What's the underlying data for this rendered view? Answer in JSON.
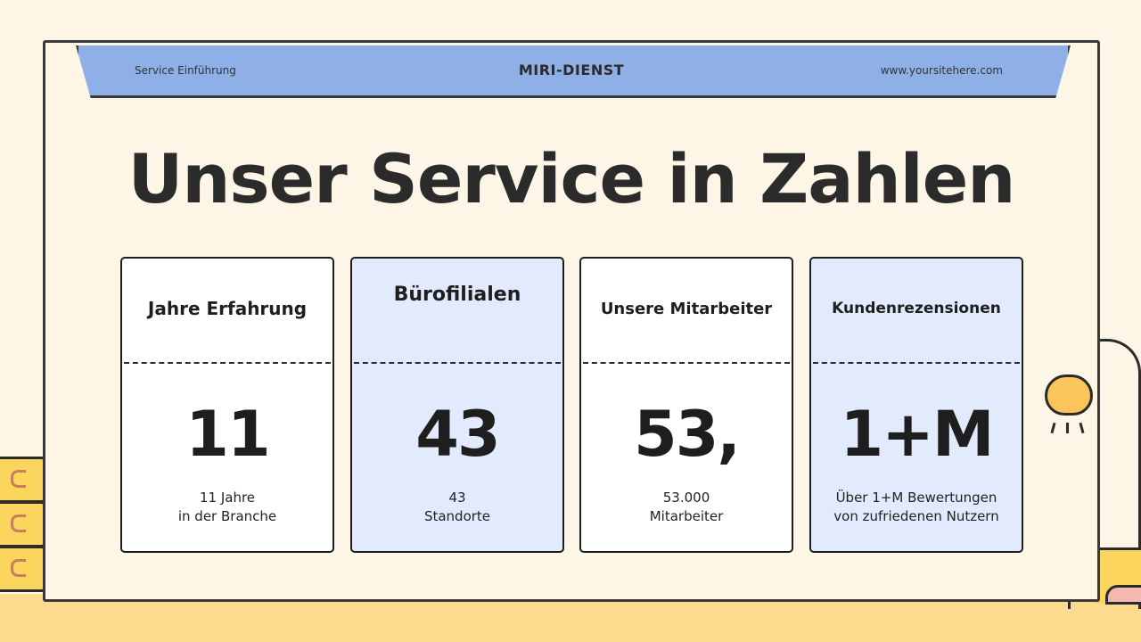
{
  "header": {
    "left_text": "Service Einführung",
    "brand": "MIRI-DIENST",
    "website": "www.yoursitehere.com"
  },
  "title": "Unser Service in Zahlen",
  "cards": [
    {
      "label": "Jahre Erfahrung",
      "value": "11",
      "desc_line1": "11 Jahre",
      "desc_line2": "in der Branche"
    },
    {
      "label": "Bürofilialen",
      "value": "43",
      "desc_line1": "43",
      "desc_line2": "Standorte"
    },
    {
      "label": "Unsere Mitarbeiter",
      "value": "53,",
      "desc_line1": "53.000",
      "desc_line2": "Mitarbeiter"
    },
    {
      "label": "Kundenrezensionen",
      "value": "1+M",
      "desc_line1": "Über 1+M Bewertungen",
      "desc_line2": "von zufriedenen Nutzern"
    }
  ],
  "colors": {
    "background": "#fdf6e6",
    "header": "#8eb0e6",
    "card_blue": "#e1ebfd",
    "floor": "#fcdb8f",
    "drawer": "#fbd55c",
    "lamp": "#fbc55c"
  }
}
